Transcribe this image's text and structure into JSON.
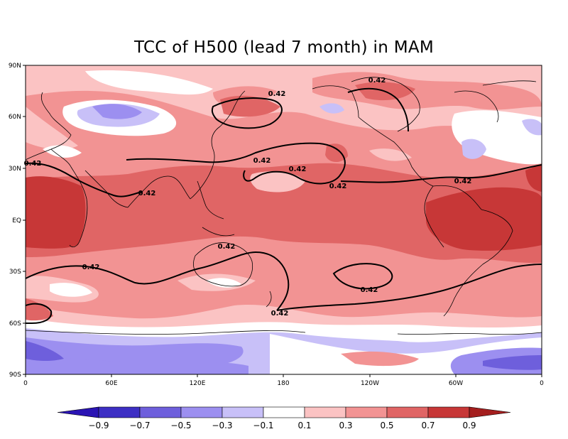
{
  "title": "TCC of H500 (lead 7 month) in MAM",
  "map": {
    "lat_labels": [
      "90N",
      "60N",
      "30N",
      "EQ",
      "30S",
      "60S",
      "90S"
    ],
    "lon_labels": [
      "0",
      "60E",
      "120E",
      "180",
      "120W",
      "60W",
      "0"
    ],
    "contour_level": 0.42,
    "contour_labels": [
      "0.42",
      "0.42",
      "0.42",
      "0.42",
      "0.42",
      "0.42",
      "0.42",
      "0.42",
      "0.42",
      "0.42",
      "0.42",
      "0.42"
    ]
  },
  "colorbar": {
    "labels": [
      "-0.9",
      "-0.7",
      "-0.5",
      "-0.3",
      "-0.1",
      "0.1",
      "0.3",
      "0.5",
      "0.7",
      "0.9"
    ],
    "colors": [
      "#2a14b4",
      "#3d2fc4",
      "#6e5fdc",
      "#9c8ff0",
      "#c8c0f8",
      "#ffffff",
      "#fbc3c3",
      "#f29393",
      "#e06565",
      "#c73737",
      "#a41e1e"
    ]
  }
}
